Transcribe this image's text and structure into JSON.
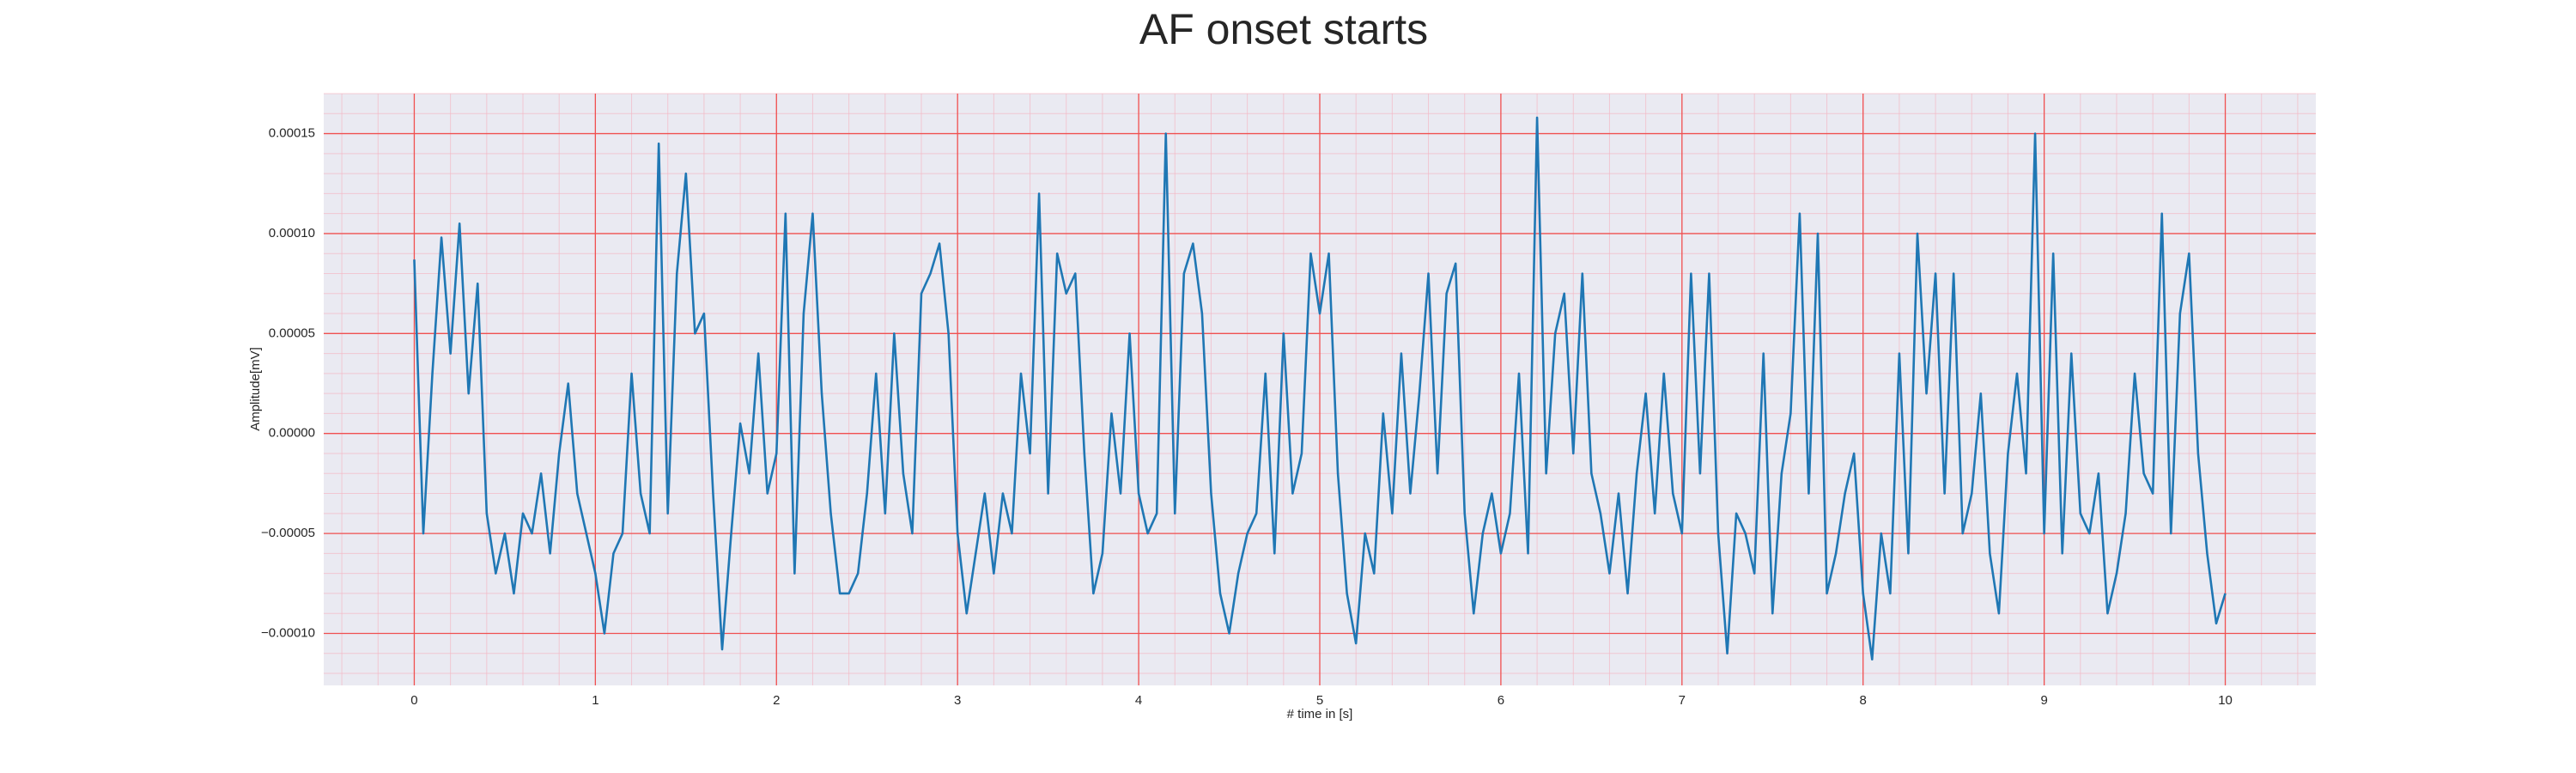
{
  "chart_data": {
    "type": "line",
    "title": "AF onset starts",
    "xlabel": "# time in [s]",
    "ylabel": "Amplitude[mV]",
    "color": "#1f77b4",
    "grid": true,
    "minor_grid": true,
    "xlim": [
      -0.5,
      10.5
    ],
    "ylim": [
      -0.000126,
      0.00017
    ],
    "xticks": [
      0,
      1,
      2,
      3,
      4,
      5,
      6,
      7,
      8,
      9,
      10
    ],
    "yticks": [
      {
        "value": -0.0001,
        "label": "−0.00010"
      },
      {
        "value": -5e-05,
        "label": "−0.00005"
      },
      {
        "value": 0,
        "label": "0.00000"
      },
      {
        "value": 5e-05,
        "label": "0.00005"
      },
      {
        "value": 0.0001,
        "label": "0.00010"
      },
      {
        "value": 0.00015,
        "label": "0.00015"
      }
    ],
    "x": [
      0,
      0.05,
      0.1,
      0.15,
      0.2,
      0.25,
      0.3,
      0.35,
      0.4,
      0.45,
      0.5,
      0.55,
      0.6,
      0.65,
      0.7,
      0.75,
      0.8,
      0.85,
      0.9,
      0.95,
      1,
      1.05,
      1.1,
      1.15,
      1.2,
      1.25,
      1.3,
      1.35,
      1.4,
      1.45,
      1.5,
      1.55,
      1.6,
      1.65,
      1.7,
      1.75,
      1.8,
      1.85,
      1.9,
      1.95,
      2,
      2.05,
      2.1,
      2.15,
      2.2,
      2.25,
      2.3,
      2.35,
      2.4,
      2.45,
      2.5,
      2.55,
      2.6,
      2.65,
      2.7,
      2.75,
      2.8,
      2.85,
      2.9,
      2.95,
      3,
      3.05,
      3.1,
      3.15,
      3.2,
      3.25,
      3.3,
      3.35,
      3.4,
      3.45,
      3.5,
      3.55,
      3.6,
      3.65,
      3.7,
      3.75,
      3.8,
      3.85,
      3.9,
      3.95,
      4,
      4.05,
      4.1,
      4.15,
      4.2,
      4.25,
      4.3,
      4.35,
      4.4,
      4.45,
      4.5,
      4.55,
      4.6,
      4.65,
      4.7,
      4.75,
      4.8,
      4.85,
      4.9,
      4.95,
      5,
      5.05,
      5.1,
      5.15,
      5.2,
      5.25,
      5.3,
      5.35,
      5.4,
      5.45,
      5.5,
      5.55,
      5.6,
      5.65,
      5.7,
      5.75,
      5.8,
      5.85,
      5.9,
      5.95,
      6,
      6.05,
      6.1,
      6.15,
      6.2,
      6.25,
      6.3,
      6.35,
      6.4,
      6.45,
      6.5,
      6.55,
      6.6,
      6.65,
      6.7,
      6.75,
      6.8,
      6.85,
      6.9,
      6.95,
      7,
      7.05,
      7.1,
      7.15,
      7.2,
      7.25,
      7.3,
      7.35,
      7.4,
      7.45,
      7.5,
      7.55,
      7.6,
      7.65,
      7.7,
      7.75,
      7.8,
      7.85,
      7.9,
      7.95,
      8,
      8.05,
      8.1,
      8.15,
      8.2,
      8.25,
      8.3,
      8.35,
      8.4,
      8.45,
      8.5,
      8.55,
      8.6,
      8.65,
      8.7,
      8.75,
      8.8,
      8.85,
      8.9,
      8.95,
      9,
      9.05,
      9.1,
      9.15,
      9.2,
      9.25,
      9.3,
      9.35,
      9.4,
      9.45,
      9.5,
      9.55,
      9.6,
      9.65,
      9.7,
      9.75,
      9.8,
      9.85,
      9.9,
      9.95,
      10
    ],
    "values": [
      8.7e-05,
      -5e-05,
      3e-05,
      9.8e-05,
      4e-05,
      0.000105,
      2e-05,
      7.5e-05,
      -4e-05,
      -7e-05,
      -5e-05,
      -8e-05,
      -4e-05,
      -5e-05,
      -2e-05,
      -6e-05,
      -1e-05,
      2.5e-05,
      -3e-05,
      -5e-05,
      -7e-05,
      -0.0001,
      -6e-05,
      -5e-05,
      3e-05,
      -3e-05,
      -5e-05,
      0.000145,
      -4e-05,
      8e-05,
      0.00013,
      5e-05,
      6e-05,
      -3e-05,
      -0.000108,
      -5e-05,
      5e-06,
      -2e-05,
      4e-05,
      -3e-05,
      -1e-05,
      0.00011,
      -7e-05,
      6e-05,
      0.00011,
      2e-05,
      -4e-05,
      -8e-05,
      -8e-05,
      -7e-05,
      -3e-05,
      3e-05,
      -4e-05,
      5e-05,
      -2e-05,
      -5e-05,
      7e-05,
      8e-05,
      9.5e-05,
      5e-05,
      -5e-05,
      -9e-05,
      -6e-05,
      -3e-05,
      -7e-05,
      -3e-05,
      -5e-05,
      3e-05,
      -1e-05,
      0.00012,
      -3e-05,
      9e-05,
      7e-05,
      8e-05,
      -1e-05,
      -8e-05,
      -6e-05,
      1e-05,
      -3e-05,
      5e-05,
      -3e-05,
      -5e-05,
      -4e-05,
      0.00015,
      -4e-05,
      8e-05,
      9.5e-05,
      6e-05,
      -3e-05,
      -8e-05,
      -0.0001,
      -7e-05,
      -5e-05,
      -4e-05,
      3e-05,
      -6e-05,
      5e-05,
      -3e-05,
      -1e-05,
      9e-05,
      6e-05,
      9e-05,
      -2e-05,
      -8e-05,
      -0.000105,
      -5e-05,
      -7e-05,
      1e-05,
      -4e-05,
      4e-05,
      -3e-05,
      2e-05,
      8e-05,
      -2e-05,
      7e-05,
      8.5e-05,
      -4e-05,
      -9e-05,
      -5e-05,
      -3e-05,
      -6e-05,
      -4e-05,
      3e-05,
      -6e-05,
      0.000158,
      -2e-05,
      5e-05,
      7e-05,
      -1e-05,
      8e-05,
      -2e-05,
      -4e-05,
      -7e-05,
      -3e-05,
      -8e-05,
      -2e-05,
      2e-05,
      -4e-05,
      3e-05,
      -3e-05,
      -5e-05,
      8e-05,
      -2e-05,
      8e-05,
      -5e-05,
      -0.00011,
      -4e-05,
      -5e-05,
      -7e-05,
      4e-05,
      -9e-05,
      -2e-05,
      1e-05,
      0.00011,
      -3e-05,
      0.0001,
      -8e-05,
      -6e-05,
      -3e-05,
      -1e-05,
      -8e-05,
      -0.000113,
      -5e-05,
      -8e-05,
      4e-05,
      -6e-05,
      0.0001,
      2e-05,
      8e-05,
      -3e-05,
      8e-05,
      -5e-05,
      -3e-05,
      2e-05,
      -6e-05,
      -9e-05,
      -1e-05,
      3e-05,
      -2e-05,
      0.00015,
      -5e-05,
      9e-05,
      -6e-05,
      4e-05,
      -4e-05,
      -5e-05,
      -2e-05,
      -9e-05,
      -7e-05,
      -4e-05,
      3e-05,
      -2e-05,
      -3e-05,
      0.00011,
      -5e-05,
      6e-05,
      9e-05,
      -1e-05,
      -6e-05,
      -9.5e-05,
      -8e-05
    ]
  }
}
